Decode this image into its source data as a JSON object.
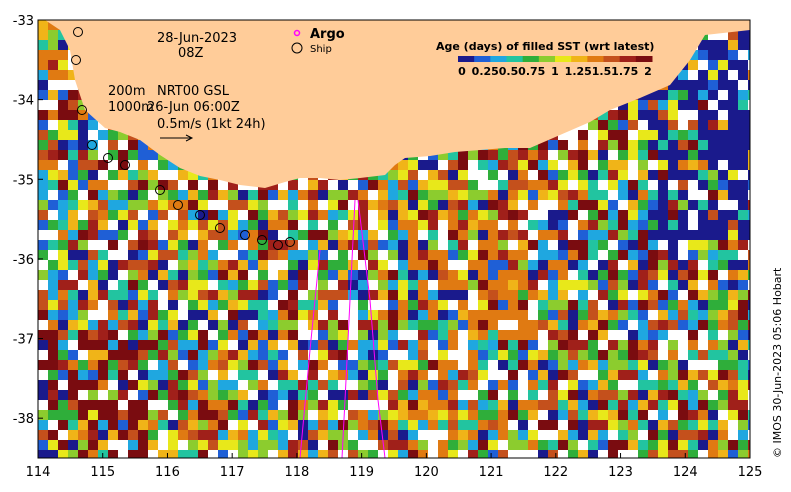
{
  "map": {
    "date": "28-Jun-2023",
    "time": "08Z",
    "depth_label_1": "200m",
    "depth_label_2": "1000m",
    "product_label": "NRT00 GSL",
    "product_time": "26-Jun 06:00Z",
    "vector_scale": "0.5m/s (1kt 24h)",
    "legend_argo": "Argo",
    "legend_ship": "Ship",
    "colorbar_title": "Age (days) of filled SST (wrt latest)",
    "colorbar_ticks": [
      "0",
      "0.25",
      "0.5",
      "0.75",
      "1",
      "1.25",
      "1.5",
      "1.75",
      "2"
    ],
    "colorbar_colors": [
      "#1a1a8c",
      "#1f5fd6",
      "#1fa7e0",
      "#22c4a0",
      "#2fae3a",
      "#8ccc2e",
      "#e8e81a",
      "#f0b418",
      "#e07a12",
      "#c4501c",
      "#a0201a",
      "#7a0c10"
    ],
    "copyright": "© IMOS 30-Jun-2023 05:06 Hobart",
    "x_ticks": [
      "114",
      "115",
      "116",
      "117",
      "118",
      "119",
      "120",
      "121",
      "122",
      "123",
      "124",
      "125"
    ],
    "y_ticks": [
      "-33",
      "-34",
      "-35",
      "-36",
      "-37",
      "-38"
    ],
    "x_range": [
      114,
      125
    ],
    "y_range": [
      -38.5,
      -33
    ],
    "land_color": "#ffcc99",
    "nodata_color": "#ffffff"
  }
}
